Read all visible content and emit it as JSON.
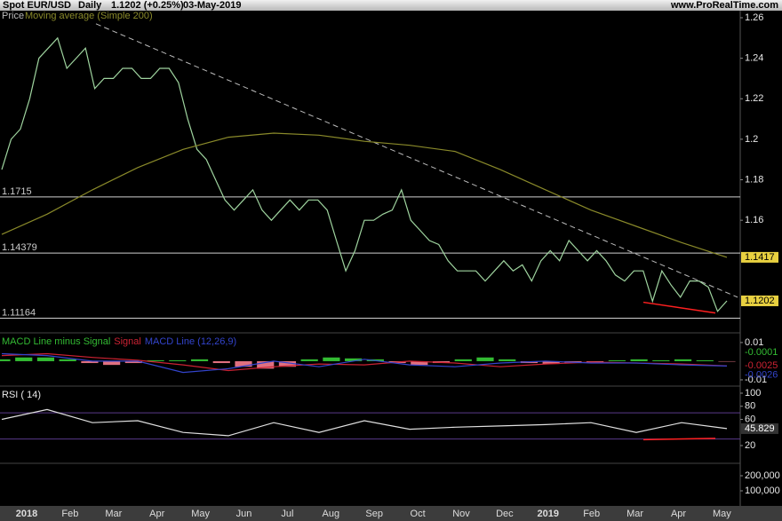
{
  "header": {
    "instrument": "Spot EUR/USD",
    "period": "Daily",
    "quote": "1.1202 (+0.25%)",
    "date": "03-May-2019",
    "site": "www.ProRealTime.com"
  },
  "xlabels": [
    "2018",
    "Feb",
    "Mar",
    "Apr",
    "May",
    "Jun",
    "Jul",
    "Aug",
    "Sep",
    "Oct",
    "Nov",
    "Dec",
    "2019",
    "Feb",
    "Mar",
    "Apr",
    "May"
  ],
  "chart_data": [
    {
      "type": "line",
      "legend_prefix": "Price",
      "ylim": [
        1.1066,
        1.2635
      ],
      "yticks": [
        1.16,
        1.18,
        1.2,
        1.22,
        1.24,
        1.26
      ],
      "levels": [
        1.1715,
        1.14379,
        1.11164
      ],
      "trendline": {
        "start": 1.257,
        "end": 1.122,
        "color": "#bbbbbb"
      },
      "support": {
        "start": 1.1195,
        "end": 1.1142,
        "color": "#ff2020"
      },
      "series": [
        {
          "name": "Price",
          "color": "#9fd49f",
          "values": [
            1.185,
            1.2,
            1.205,
            1.22,
            1.24,
            1.245,
            1.25,
            1.235,
            1.24,
            1.245,
            1.225,
            1.23,
            1.23,
            1.235,
            1.235,
            1.23,
            1.23,
            1.235,
            1.235,
            1.228,
            1.21,
            1.195,
            1.19,
            1.18,
            1.17,
            1.165,
            1.17,
            1.175,
            1.165,
            1.16,
            1.165,
            1.17,
            1.165,
            1.17,
            1.17,
            1.165,
            1.15,
            1.135,
            1.145,
            1.16,
            1.16,
            1.163,
            1.165,
            1.175,
            1.16,
            1.155,
            1.15,
            1.148,
            1.14,
            1.135,
            1.135,
            1.135,
            1.13,
            1.135,
            1.14,
            1.135,
            1.138,
            1.13,
            1.14,
            1.145,
            1.14,
            1.15,
            1.145,
            1.14,
            1.145,
            1.14,
            1.133,
            1.13,
            1.135,
            1.135,
            1.12,
            1.135,
            1.128,
            1.122,
            1.13,
            1.13,
            1.127,
            1.115,
            1.1202
          ]
        },
        {
          "name": "Moving average (Simple 200)",
          "color": "#8a8a2a",
          "values": [
            1.153,
            1.163,
            1.175,
            1.186,
            1.195,
            1.201,
            1.203,
            1.202,
            1.199,
            1.197,
            1.194,
            1.185,
            1.175,
            1.165,
            1.157,
            1.149,
            1.1417
          ]
        }
      ]
    },
    {
      "type": "macd",
      "ylim": [
        -0.0124,
        0.0133
      ],
      "yticks": [
        -0.01,
        0.01
      ],
      "series": [
        {
          "name": "MACD Line minus Signal",
          "type": "bar",
          "color": "#33bb33",
          "negative_color": "#e07080",
          "values": [
            0.001,
            0.002,
            0.002,
            0.001,
            -0.001,
            -0.002,
            -0.001,
            0.0005,
            0.0005,
            0.001,
            -0.001,
            -0.003,
            -0.004,
            -0.003,
            0.001,
            0.002,
            0.0015,
            0.001,
            -0.001,
            -0.002,
            -0.001,
            0.001,
            0.002,
            0.001,
            -0.001,
            -0.0015,
            -0.001,
            -0.0005,
            0.0005,
            0.001,
            0.0005,
            0.001,
            0.0005,
            -0.0001
          ]
        },
        {
          "name": "Signal",
          "type": "line",
          "color": "#cc2233",
          "values": [
            0.003,
            0.004,
            0.002,
            0.0005,
            -0.002,
            -0.005,
            -0.003,
            -0.0015,
            -0.002,
            0,
            -0.001,
            -0.003,
            -0.0015,
            -0.0005,
            -0.001,
            -0.0015,
            -0.0025
          ]
        },
        {
          "name": "MACD Line (12,26,9)",
          "type": "line",
          "color": "#3344cc",
          "values": [
            0.004,
            0.003,
            0,
            0,
            -0.006,
            -0.004,
            0,
            -0.003,
            0.001,
            -0.002,
            -0.003,
            -0.001,
            0,
            -0.001,
            -0.001,
            -0.002,
            -0.0026
          ]
        }
      ]
    },
    {
      "type": "line",
      "title": "RSI ( 14)",
      "ylim": [
        -7.1,
        108.1
      ],
      "yticks": [
        20,
        60,
        80,
        100
      ],
      "levels": [
        70,
        30
      ],
      "support": {
        "start": 29,
        "end": 31,
        "color": "#ff2020"
      },
      "series": [
        {
          "name": "RSI",
          "color": "#e0e0e0",
          "values": [
            60,
            75,
            55,
            58,
            40,
            35,
            55,
            40,
            58,
            45,
            48,
            50,
            52,
            55,
            40,
            55,
            45.829
          ]
        }
      ]
    },
    {
      "type": "bar",
      "ylim": [
        0,
        282353
      ],
      "yticks": [
        {
          "value": 100000,
          "label": "100,000"
        },
        {
          "value": 200000,
          "label": "200,000"
        }
      ],
      "series": []
    }
  ]
}
